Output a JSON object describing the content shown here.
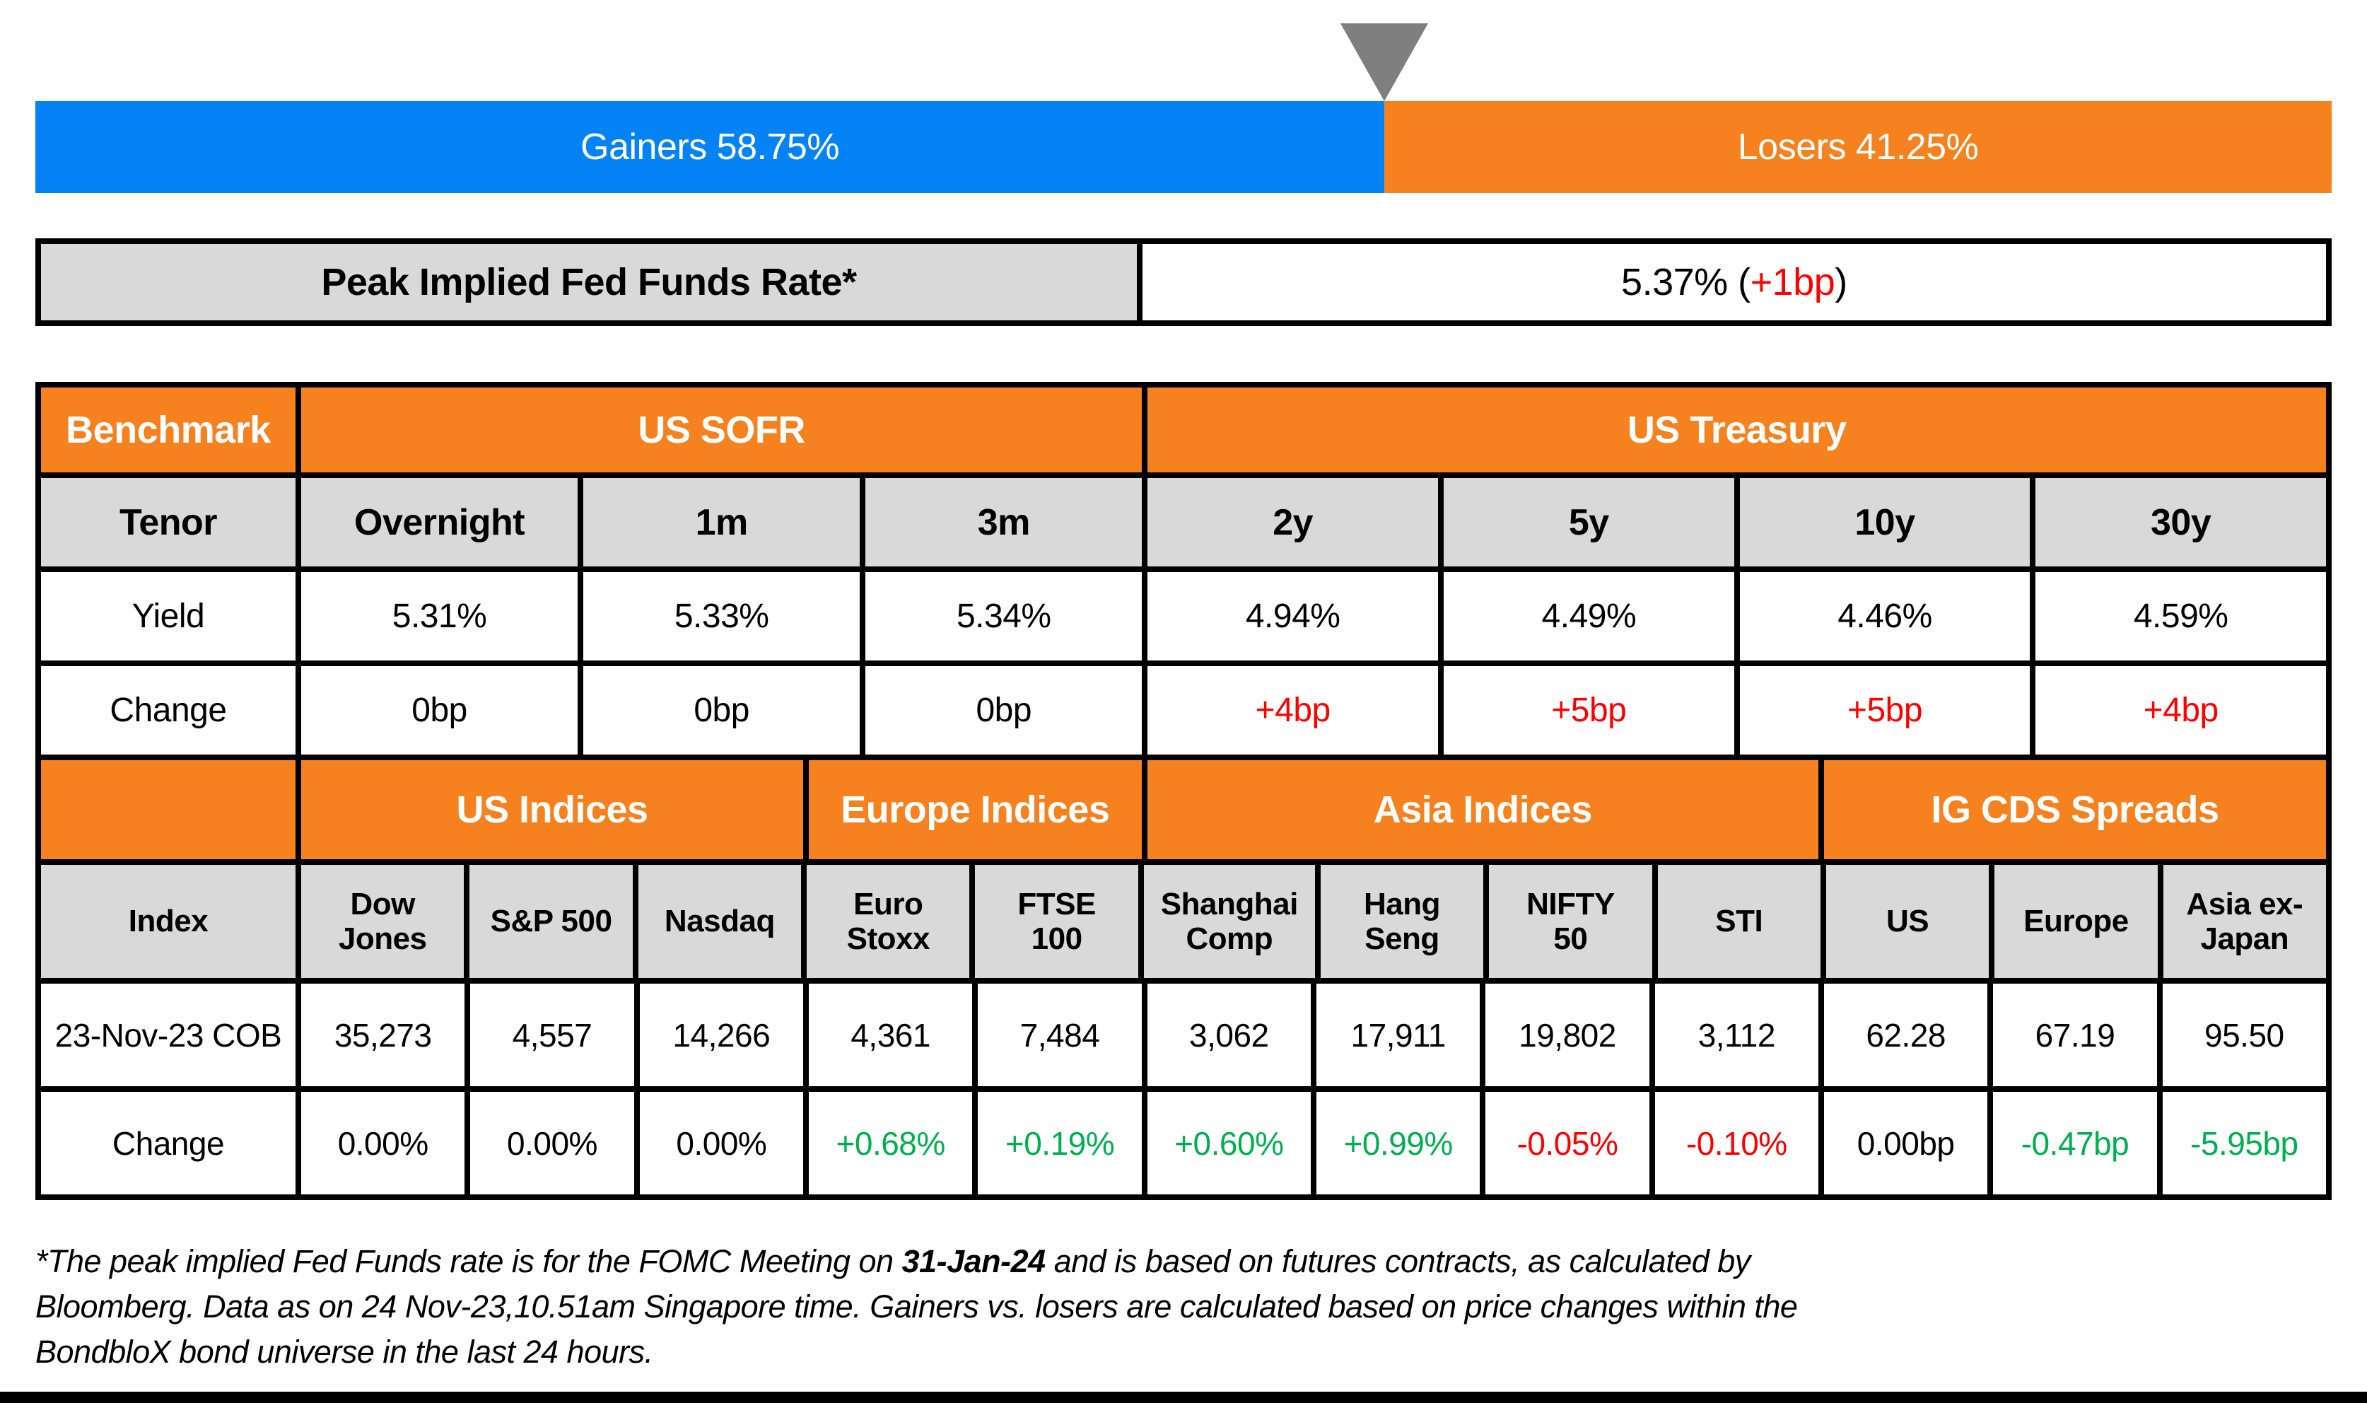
{
  "top_bar": {
    "gainers_label": "Gainers 58.75%",
    "losers_label": "Losers 41.25%",
    "gainers_pct": 58.75,
    "losers_pct": 41.25
  },
  "peak_rate": {
    "label": "Peak Implied Fed Funds Rate*",
    "value_open": "5.37% (",
    "change": "+1bp",
    "close_paren": ")"
  },
  "benchmark_table": {
    "col_groups": [
      "Benchmark",
      "US SOFR",
      "US Treasury"
    ],
    "row_labels": [
      "Tenor",
      "Yield",
      "Change"
    ],
    "tenors": [
      "Overnight",
      "1m",
      "3m",
      "2y",
      "5y",
      "10y",
      "30y"
    ],
    "yields": [
      "5.31%",
      "5.33%",
      "5.34%",
      "4.94%",
      "4.49%",
      "4.46%",
      "4.59%"
    ],
    "changes": [
      "0bp",
      "0bp",
      "0bp",
      "+4bp",
      "+5bp",
      "+5bp",
      "+4bp"
    ]
  },
  "indices_table": {
    "col_groups": [
      "US Indices",
      "Europe Indices",
      "Asia Indices",
      "IG CDS Spreads"
    ],
    "row_labels": [
      "Index",
      "23-Nov-23 COB",
      "Change"
    ],
    "indices": [
      "Dow Jones",
      "S&P 500",
      "Nasdaq",
      "Euro Stoxx",
      "FTSE 100",
      "Shanghai Comp",
      "Hang Seng",
      "NIFTY 50",
      "STI",
      "US",
      "Europe",
      "Asia ex-Japan"
    ],
    "cob_values": [
      "35,273",
      "4,557",
      "14,266",
      "4,361",
      "7,484",
      "3,062",
      "17,911",
      "19,802",
      "3,112",
      "62.28",
      "67.19",
      "95.50"
    ],
    "changes": [
      "0.00%",
      "0.00%",
      "0.00%",
      "+0.68%",
      "+0.19%",
      "+0.60%",
      "+0.99%",
      "-0.05%",
      "-0.10%",
      "0.00bp",
      "-0.47bp",
      "-5.95bp"
    ]
  },
  "footnote": {
    "l1_pre": "*The peak implied Fed Funds rate is for the FOMC Meeting on ",
    "l1_bold": "31-Jan-24",
    "l1_post": " and is based on futures contracts, as calculated by",
    "l2": "Bloomberg. Data as on 24 Nov-23,10.51am Singapore time. Gainers vs. losers are calculated based on price changes within the",
    "l3": "BondbloX bond universe in the last 24 hours."
  },
  "colors": {
    "gainers_blue": "#0583F5",
    "losers_orange": "#F5821F",
    "header_orange": "#F5821F",
    "row_gray": "#D9D9D9",
    "marker_gray": "#7F7F7F",
    "positive_green": "#00B050",
    "negative_red": "#FF0000"
  },
  "chart_data": [
    {
      "type": "bar",
      "subtype": "stacked-horizontal-percentage",
      "categories": [
        "Gainers",
        "Losers"
      ],
      "values": [
        58.75,
        41.25
      ],
      "unit": "%",
      "labels": [
        "Gainers 58.75%",
        "Losers 41.25%"
      ],
      "legend_position": "none",
      "annotations": [
        "gray down-triangle marker at the 58.75% boundary"
      ]
    },
    {
      "type": "table",
      "title": "Benchmark",
      "column_groups": [
        {
          "name": "US SOFR",
          "columns": [
            "Overnight",
            "1m",
            "3m"
          ]
        },
        {
          "name": "US Treasury",
          "columns": [
            "2y",
            "5y",
            "10y",
            "30y"
          ]
        }
      ],
      "rows": [
        {
          "label": "Yield",
          "values": [
            "5.31%",
            "5.33%",
            "5.34%",
            "4.94%",
            "4.49%",
            "4.46%",
            "4.59%"
          ]
        },
        {
          "label": "Change",
          "values": [
            "0bp",
            "0bp",
            "0bp",
            "+4bp",
            "+5bp",
            "+5bp",
            "+4bp"
          ]
        }
      ]
    },
    {
      "type": "table",
      "title": "Index",
      "column_groups": [
        {
          "name": "US Indices",
          "columns": [
            "Dow Jones",
            "S&P 500",
            "Nasdaq"
          ]
        },
        {
          "name": "Europe Indices",
          "columns": [
            "Euro Stoxx",
            "FTSE 100"
          ]
        },
        {
          "name": "Asia Indices",
          "columns": [
            "Shanghai Comp",
            "Hang Seng",
            "NIFTY 50",
            "STI"
          ]
        },
        {
          "name": "IG CDS Spreads",
          "columns": [
            "US",
            "Europe",
            "Asia ex-Japan"
          ]
        }
      ],
      "rows": [
        {
          "label": "23-Nov-23 COB",
          "values": [
            "35,273",
            "4,557",
            "14,266",
            "4,361",
            "7,484",
            "3,062",
            "17,911",
            "19,802",
            "3,112",
            "62.28",
            "67.19",
            "95.50"
          ]
        },
        {
          "label": "Change",
          "values": [
            "0.00%",
            "0.00%",
            "0.00%",
            "+0.68%",
            "+0.19%",
            "+0.60%",
            "+0.99%",
            "-0.05%",
            "-0.10%",
            "0.00bp",
            "-0.47bp",
            "-5.95bp"
          ]
        }
      ]
    }
  ]
}
